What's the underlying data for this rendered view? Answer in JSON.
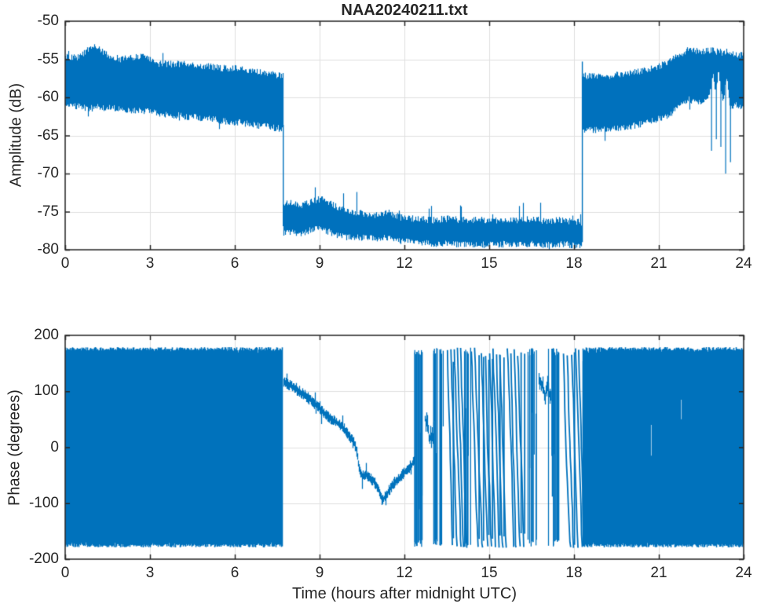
{
  "figure": {
    "title": "NAA20240211.txt",
    "background": "#ffffff",
    "series_color": "#0072BD",
    "grid_color": "#e0e0e0",
    "axis_color": "#262626",
    "label_color": "#262626"
  },
  "chart_data": [
    {
      "type": "line",
      "panel": "amplitude",
      "title": "NAA20240211.txt",
      "ylabel": "Amplitude (dB)",
      "xlim": [
        0,
        24
      ],
      "ylim": [
        -80,
        -50
      ],
      "xticks": [
        0,
        3,
        6,
        9,
        12,
        15,
        18,
        21,
        24
      ],
      "yticks": [
        -80,
        -75,
        -70,
        -65,
        -60,
        -55,
        -50
      ],
      "grid": true,
      "legend": "none",
      "description": "Noisy amplitude band: high daytime level 0-7.7h, sharp drop to low level 7.7-18.3h, sharp recovery 18.3-24h",
      "band_segments": [
        {
          "name": "pre-drop-high-band",
          "points": [
            [
              0,
              -60.9,
              -54.8
            ],
            [
              0.5,
              -61.0,
              -54.9
            ],
            [
              0.85,
              -61.3,
              -53.7
            ],
            [
              1.1,
              -61.1,
              -53.5
            ],
            [
              1.5,
              -61.2,
              -54.7
            ],
            [
              2.0,
              -61.4,
              -55.2
            ],
            [
              2.4,
              -61.6,
              -54.9
            ],
            [
              2.8,
              -61.6,
              -54.7
            ],
            [
              3.2,
              -61.9,
              -55.7
            ],
            [
              3.7,
              -62.1,
              -55.8
            ],
            [
              4.2,
              -62.3,
              -55.8
            ],
            [
              4.7,
              -62.5,
              -56.0
            ],
            [
              5.2,
              -62.7,
              -56.2
            ],
            [
              5.7,
              -63.0,
              -56.4
            ],
            [
              6.1,
              -63.1,
              -56.3
            ],
            [
              6.5,
              -63.3,
              -56.7
            ],
            [
              7.0,
              -63.6,
              -57.0
            ],
            [
              7.4,
              -63.8,
              -57.2
            ],
            [
              7.7,
              -64.0,
              -57.4
            ]
          ],
          "spike_rate": 0.015,
          "spike_max": 1.2,
          "down_rate": 0.01,
          "down_max": 1.0
        },
        {
          "name": "low-band",
          "points": [
            [
              7.72,
              -77.6,
              -74.1
            ],
            [
              8.0,
              -77.4,
              -74.0
            ],
            [
              8.3,
              -77.8,
              -74.4
            ],
            [
              8.6,
              -77.3,
              -74.0
            ],
            [
              8.9,
              -77.1,
              -73.6
            ],
            [
              9.2,
              -77.3,
              -73.6
            ],
            [
              9.5,
              -77.7,
              -74.4
            ],
            [
              9.8,
              -78.1,
              -74.9
            ],
            [
              10.1,
              -78.2,
              -75.1
            ],
            [
              10.5,
              -78.2,
              -75.4
            ],
            [
              11.0,
              -78.4,
              -75.6
            ],
            [
              11.4,
              -78.2,
              -75.2
            ],
            [
              11.8,
              -78.6,
              -75.9
            ],
            [
              12.3,
              -78.8,
              -76.1
            ],
            [
              13.0,
              -79.0,
              -76.3
            ],
            [
              13.5,
              -79.0,
              -76.1
            ],
            [
              14.0,
              -79.2,
              -76.3
            ],
            [
              14.5,
              -79.1,
              -76.2
            ],
            [
              15.0,
              -79.2,
              -76.4
            ],
            [
              15.5,
              -79.1,
              -76.2
            ],
            [
              16.0,
              -79.2,
              -76.3
            ],
            [
              16.5,
              -79.1,
              -76.2
            ],
            [
              17.0,
              -79.2,
              -76.4
            ],
            [
              17.5,
              -79.1,
              -76.3
            ],
            [
              18.0,
              -79.2,
              -76.5
            ],
            [
              18.26,
              -79.2,
              -76.6
            ]
          ],
          "spike_rate": 0.06,
          "spike_max": 2.6,
          "down_rate": 0.01,
          "down_max": 0.6
        },
        {
          "name": "post-recovery-high-band",
          "points": [
            [
              18.3,
              -64.3,
              -57.4
            ],
            [
              18.7,
              -64.1,
              -57.3
            ],
            [
              19.1,
              -64.0,
              -57.4
            ],
            [
              19.5,
              -63.8,
              -57.2
            ],
            [
              20.0,
              -63.6,
              -57.0
            ],
            [
              20.5,
              -63.2,
              -56.6
            ],
            [
              21.0,
              -62.6,
              -56.1
            ],
            [
              21.4,
              -62.0,
              -55.4
            ],
            [
              21.7,
              -61.0,
              -54.6
            ],
            [
              22.0,
              -60.1,
              -54.0
            ],
            [
              22.3,
              -60.3,
              -54.1
            ],
            [
              22.6,
              -60.4,
              -54.1
            ],
            [
              22.8,
              -59.0,
              -54.0
            ],
            [
              22.9,
              -56.8,
              -54.0
            ],
            [
              23.0,
              -59.2,
              -54.2
            ],
            [
              23.1,
              -56.2,
              -54.1
            ],
            [
              23.25,
              -60.5,
              -54.3
            ],
            [
              23.4,
              -57.0,
              -54.2
            ],
            [
              23.5,
              -61.0,
              -54.5
            ],
            [
              23.7,
              -60.8,
              -54.5
            ],
            [
              24,
              -61.2,
              -54.6
            ]
          ],
          "spike_rate": 0.02,
          "spike_max": 1.0,
          "down_rate": 0.015,
          "down_max": 2.0,
          "downspikes": [
            [
              22.85,
              -67
            ],
            [
              23.02,
              -65.5
            ],
            [
              23.18,
              -66.5
            ],
            [
              23.35,
              -70
            ],
            [
              23.52,
              -68.5
            ]
          ]
        }
      ],
      "events": [
        {
          "name": "sunrise-drop",
          "t": 7.7,
          "v": [
            -63.6,
            -76.9
          ]
        },
        {
          "name": "sunset-recovery",
          "t": 18.28,
          "v": [
            -79.0,
            -55.3
          ]
        }
      ]
    },
    {
      "type": "line",
      "panel": "phase",
      "ylabel": "Phase (degrees)",
      "xlabel": "Time (hours after midnight UTC)",
      "xlim": [
        0,
        24
      ],
      "ylim": [
        -200,
        200
      ],
      "xticks": [
        0,
        3,
        6,
        9,
        12,
        15,
        18,
        21,
        24
      ],
      "yticks": [
        -200,
        -100,
        0,
        100,
        200
      ],
      "grid": true,
      "legend": "none",
      "description": "Phase wraps full scale (noise) 0-7.7h and 18.3-24h; coherent descending trace 7.7-12.3h; phase-slip cycling 12.3-18.3h",
      "segments": [
        {
          "kind": "noise_block",
          "t": [
            0,
            7.68
          ],
          "range": [
            -179,
            179
          ]
        },
        {
          "kind": "trace",
          "noise_deg": 7,
          "points": [
            [
              7.72,
              118
            ],
            [
              7.9,
              112
            ],
            [
              8.1,
              105
            ],
            [
              8.35,
              97
            ],
            [
              8.6,
              88
            ],
            [
              8.85,
              76
            ],
            [
              9.1,
              63
            ],
            [
              9.35,
              52
            ],
            [
              9.6,
              44
            ],
            [
              9.85,
              34
            ],
            [
              10.05,
              20
            ],
            [
              10.2,
              8
            ],
            [
              10.3,
              -6
            ],
            [
              10.4,
              -42
            ],
            [
              10.5,
              -52
            ],
            [
              10.62,
              -47
            ],
            [
              10.75,
              -55
            ],
            [
              10.9,
              -61
            ],
            [
              11.05,
              -72
            ],
            [
              11.2,
              -95
            ],
            [
              11.35,
              -85
            ],
            [
              11.5,
              -73
            ],
            [
              11.65,
              -63
            ],
            [
              11.8,
              -55
            ],
            [
              11.95,
              -47
            ],
            [
              12.1,
              -40
            ],
            [
              12.25,
              -32
            ],
            [
              12.33,
              -22
            ]
          ]
        },
        {
          "kind": "slips",
          "t": [
            12.35,
            18.28
          ],
          "sub": [
            {
              "t": [
                12.35,
                12.62
              ],
              "style": "bars",
              "density": 1.6
            },
            {
              "t": [
                12.62,
                12.72
              ],
              "style": "gap"
            },
            {
              "t": [
                12.72,
                13.02
              ],
              "style": "wander",
              "center": 10,
              "spread": 120
            },
            {
              "t": [
                13.02,
                13.38
              ],
              "style": "bars",
              "density": 1.3
            },
            {
              "t": [
                13.38,
                13.52
              ],
              "style": "gap"
            },
            {
              "t": [
                13.52,
                14.1
              ],
              "style": "diag",
              "count": 5
            },
            {
              "t": [
                14.1,
                14.35
              ],
              "style": "bars",
              "density": 0.9
            },
            {
              "t": [
                14.35,
                14.6
              ],
              "style": "diag",
              "count": 2
            },
            {
              "t": [
                14.6,
                14.72
              ],
              "style": "gap"
            },
            {
              "t": [
                14.72,
                15.12
              ],
              "style": "diag",
              "count": 3
            },
            {
              "t": [
                15.12,
                15.48
              ],
              "style": "diag",
              "count": 3
            },
            {
              "t": [
                15.48,
                15.62
              ],
              "style": "gap"
            },
            {
              "t": [
                15.62,
                16.12
              ],
              "style": "diag",
              "count": 4
            },
            {
              "t": [
                16.12,
                16.34
              ],
              "style": "gap"
            },
            {
              "t": [
                16.34,
                16.76
              ],
              "style": "bars",
              "density": 0.8
            },
            {
              "t": [
                16.76,
                17.16
              ],
              "style": "wander",
              "center": 90,
              "spread": 170
            },
            {
              "t": [
                17.16,
                17.46
              ],
              "style": "bars",
              "density": 1.1
            },
            {
              "t": [
                17.46,
                17.6
              ],
              "style": "gap"
            },
            {
              "t": [
                17.6,
                18.02
              ],
              "style": "diag",
              "count": 3
            },
            {
              "t": [
                18.02,
                18.28
              ],
              "style": "diag",
              "count": 2
            }
          ]
        },
        {
          "kind": "noise_block",
          "t": [
            18.3,
            24
          ],
          "range": [
            -179,
            179
          ],
          "scratches": [
            [
              20.72,
              40,
              -15
            ],
            [
              21.78,
              85,
              50
            ]
          ]
        }
      ]
    }
  ]
}
